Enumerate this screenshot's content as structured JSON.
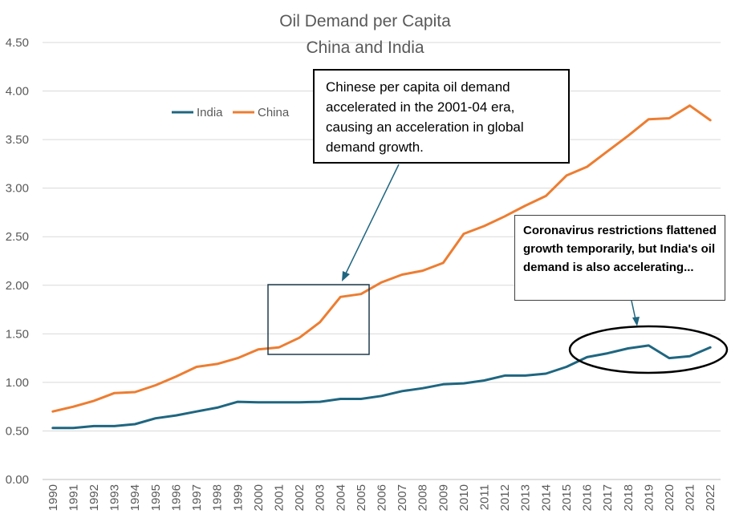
{
  "chart_data": {
    "type": "line",
    "title": "Oil Demand per Capita",
    "subtitle": "China and India",
    "x": [
      "1990",
      "1991",
      "1992",
      "1993",
      "1994",
      "1995",
      "1996",
      "1997",
      "1998",
      "1999",
      "2000",
      "2001",
      "2002",
      "2003",
      "2004",
      "2005",
      "2006",
      "2007",
      "2008",
      "2009",
      "2010",
      "2011",
      "2012",
      "2013",
      "2014",
      "2015",
      "2016",
      "2017",
      "2018",
      "2019",
      "2020",
      "2021",
      "2022"
    ],
    "series": [
      {
        "name": "India",
        "color": "#1f6680",
        "values": [
          0.53,
          0.53,
          0.55,
          0.55,
          0.57,
          0.63,
          0.66,
          0.7,
          0.74,
          0.8,
          0.795,
          0.795,
          0.795,
          0.8,
          0.83,
          0.83,
          0.86,
          0.91,
          0.94,
          0.98,
          0.99,
          1.02,
          1.07,
          1.07,
          1.09,
          1.16,
          1.26,
          1.3,
          1.35,
          1.38,
          1.25,
          1.27,
          1.36
        ]
      },
      {
        "name": "China",
        "color": "#ed7d31",
        "values": [
          0.7,
          0.75,
          0.81,
          0.89,
          0.9,
          0.97,
          1.06,
          1.16,
          1.19,
          1.25,
          1.34,
          1.36,
          1.46,
          1.62,
          1.88,
          1.91,
          2.03,
          2.11,
          2.15,
          2.23,
          2.53,
          2.61,
          2.71,
          2.82,
          2.92,
          3.13,
          3.22,
          3.38,
          3.54,
          3.71,
          3.72,
          3.85,
          3.7
        ]
      }
    ],
    "yticks": [
      "0.00",
      "0.50",
      "1.00",
      "1.50",
      "2.00",
      "2.50",
      "3.00",
      "3.50",
      "4.00",
      "4.50"
    ],
    "ylim": [
      0,
      4.5
    ],
    "grid": true,
    "legend_position": "top-left",
    "annotations": [
      {
        "text": "Chinese per capita oil demand accelerated  in the 2001-04 era, causing an acceleration  in global demand growth."
      },
      {
        "text": "Coronavirus restrictions flattened growth temporarily, but India's oil demand is also accelerating..."
      }
    ]
  }
}
